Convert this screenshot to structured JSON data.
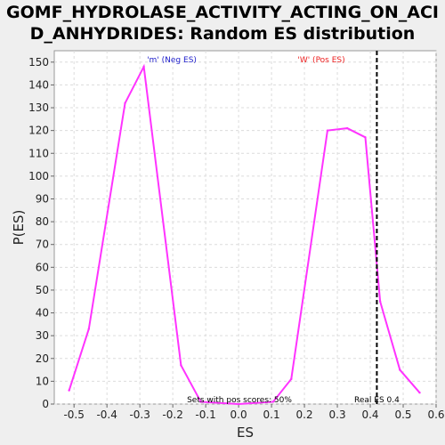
{
  "chart_data": {
    "type": "line",
    "title_line1": "GOMF_HYDROLASE_ACTIVITY_ACTING_ON_ACI",
    "title_line2": "D_ANHYDRIDES: Random ES distribution",
    "xlabel": "ES",
    "ylabel": "P(ES)",
    "xlim": [
      -0.56,
      0.6
    ],
    "ylim": [
      0,
      155
    ],
    "x_ticks": [
      -0.5,
      -0.4,
      -0.3,
      -0.2,
      -0.1,
      0.0,
      0.1,
      0.2,
      0.3,
      0.4,
      0.5,
      0.6
    ],
    "x_tick_labels": [
      "-0.5",
      "-0.4",
      "-0.3",
      "-0.2",
      "-0.1",
      "0.0",
      "0.1",
      "0.2",
      "0.3",
      "0.4",
      "0.5",
      "0.6"
    ],
    "y_ticks": [
      0,
      10,
      20,
      30,
      40,
      50,
      60,
      70,
      80,
      90,
      100,
      110,
      120,
      130,
      140,
      150
    ],
    "grid": true,
    "series": [
      {
        "color": "#ff33ff",
        "x": [
          -0.515,
          -0.455,
          -0.345,
          -0.288,
          -0.175,
          -0.115,
          0.0,
          0.105,
          0.16,
          0.27,
          0.33,
          0.385,
          0.43,
          0.49,
          0.55
        ],
        "y": [
          6,
          33,
          132,
          148,
          17,
          1,
          0,
          1,
          11,
          120,
          121,
          117,
          45,
          15,
          5
        ]
      }
    ],
    "vline": {
      "x": 0.42,
      "label": "Real ES 0.4",
      "style": "dashed",
      "color": "#000000"
    },
    "annotations": [
      {
        "text": "'m' (Neg ES)",
        "color": "#2222cc"
      },
      {
        "text": "'W' (Pos ES)",
        "color": "#ee2222"
      },
      {
        "text": "Sets with pos scores: 50%",
        "color": "#000000"
      }
    ]
  }
}
